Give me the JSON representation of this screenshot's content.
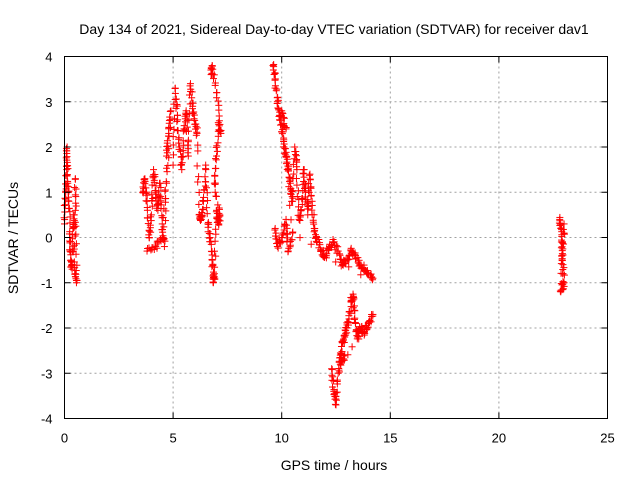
{
  "chart_data": {
    "type": "scatter",
    "title": "Day 134 of 2021, Sidereal Day-to-day VTEC variation (SDTVAR) for receiver dav1",
    "xlabel": "GPS time / hours",
    "ylabel": "SDTVAR / TECUs",
    "xlim": [
      0,
      25
    ],
    "ylim": [
      -4,
      4
    ],
    "xticks": [
      0,
      5,
      10,
      15,
      20,
      25
    ],
    "yticks": [
      -4,
      -3,
      -2,
      -1,
      0,
      1,
      2,
      3,
      4
    ],
    "xtick_labels": [
      "0",
      "5",
      "10",
      "15",
      "20",
      "25"
    ],
    "ytick_labels": [
      "-4",
      "-3",
      "-2",
      "-1",
      "0",
      "1",
      "2",
      "3",
      "4"
    ],
    "grid": true,
    "marker": "+",
    "marker_color": "#ff0000",
    "series": [
      {
        "name": "dav1",
        "segments": [
          [
            [
              0.0,
              0.3
            ],
            [
              0.05,
              1.0
            ],
            [
              0.1,
              1.5
            ],
            [
              0.12,
              2.0
            ],
            [
              0.15,
              1.2
            ],
            [
              0.2,
              0.8
            ],
            [
              0.25,
              0.0
            ],
            [
              0.3,
              -0.5
            ],
            [
              0.35,
              -0.7
            ],
            [
              0.4,
              0.2
            ],
            [
              0.45,
              0.5
            ],
            [
              0.5,
              -0.8
            ],
            [
              0.55,
              -1.0
            ],
            [
              0.5,
              0.6
            ],
            [
              0.5,
              1.3
            ]
          ],
          [
            [
              3.6,
              1.0
            ],
            [
              3.7,
              1.3
            ],
            [
              3.8,
              0.8
            ],
            [
              3.9,
              0.0
            ],
            [
              4.0,
              0.5
            ],
            [
              4.1,
              1.5
            ],
            [
              4.2,
              1.0
            ],
            [
              4.3,
              0.6
            ],
            [
              4.4,
              1.2
            ],
            [
              4.5,
              0.3
            ],
            [
              4.6,
              -0.2
            ],
            [
              4.7,
              1.8
            ],
            [
              4.8,
              2.3
            ],
            [
              4.9,
              2.8
            ],
            [
              4.7,
              1.2
            ],
            [
              4.5,
              0.0
            ],
            [
              4.2,
              -0.2
            ],
            [
              3.8,
              -0.3
            ]
          ],
          [
            [
              5.0,
              1.6
            ],
            [
              5.1,
              3.3
            ],
            [
              5.2,
              2.7
            ],
            [
              5.3,
              2.0
            ],
            [
              5.4,
              1.5
            ],
            [
              5.5,
              2.4
            ],
            [
              5.6,
              2.8
            ],
            [
              5.7,
              1.8
            ],
            [
              5.8,
              3.4
            ],
            [
              5.9,
              2.9
            ],
            [
              6.0,
              2.5
            ],
            [
              6.1,
              2.3
            ],
            [
              6.2,
              0.5
            ],
            [
              6.3,
              0.4
            ],
            [
              6.4,
              0.8
            ],
            [
              6.5,
              1.6
            ],
            [
              6.6,
              0.3
            ],
            [
              6.7,
              0.0
            ],
            [
              6.8,
              -0.5
            ],
            [
              6.85,
              -1.0
            ],
            [
              6.9,
              -0.8
            ],
            [
              7.0,
              0.6
            ],
            [
              7.1,
              0.3
            ],
            [
              7.15,
              0.5
            ],
            [
              6.9,
              1.2
            ],
            [
              7.0,
              1.8
            ],
            [
              7.1,
              2.5
            ],
            [
              7.2,
              2.3
            ],
            [
              7.0,
              3.2
            ],
            [
              6.8,
              3.8
            ],
            [
              6.75,
              3.6
            ]
          ],
          [
            [
              9.6,
              3.8
            ],
            [
              9.7,
              3.5
            ],
            [
              9.8,
              3.0
            ],
            [
              9.9,
              2.7
            ],
            [
              10.0,
              2.5
            ],
            [
              10.1,
              2.0
            ],
            [
              10.2,
              1.8
            ],
            [
              10.3,
              1.5
            ],
            [
              10.4,
              1.2
            ],
            [
              10.5,
              0.8
            ],
            [
              10.6,
              2.0
            ],
            [
              10.7,
              1.5
            ],
            [
              10.8,
              0.4
            ],
            [
              10.9,
              0.6
            ],
            [
              11.0,
              1.5
            ],
            [
              11.1,
              1.0
            ],
            [
              11.2,
              0.5
            ],
            [
              11.3,
              1.4
            ],
            [
              11.4,
              0.8
            ],
            [
              11.5,
              0.2
            ],
            [
              11.6,
              0.0
            ],
            [
              11.8,
              -0.3
            ],
            [
              12.0,
              -0.4
            ],
            [
              12.2,
              -0.2
            ],
            [
              12.4,
              -0.1
            ],
            [
              12.6,
              -0.3
            ],
            [
              12.8,
              -0.6
            ],
            [
              13.0,
              -0.5
            ],
            [
              13.2,
              -0.3
            ],
            [
              13.4,
              -0.4
            ],
            [
              13.6,
              -0.6
            ],
            [
              13.8,
              -0.7
            ],
            [
              14.0,
              -0.8
            ],
            [
              14.2,
              -0.9
            ],
            [
              9.7,
              0.2
            ],
            [
              9.8,
              -0.2
            ],
            [
              10.0,
              0.0
            ],
            [
              10.2,
              0.4
            ],
            [
              10.3,
              -0.3
            ],
            [
              10.5,
              0.1
            ],
            [
              10.0,
              2.8
            ],
            [
              10.2,
              2.4
            ]
          ],
          [
            [
              12.3,
              -2.9
            ],
            [
              12.4,
              -3.4
            ],
            [
              12.5,
              -3.7
            ],
            [
              12.6,
              -3.0
            ],
            [
              12.7,
              -2.6
            ],
            [
              12.8,
              -2.3
            ],
            [
              12.9,
              -2.2
            ],
            [
              13.0,
              -2.0
            ],
            [
              13.1,
              -1.8
            ],
            [
              13.2,
              -1.4
            ],
            [
              13.3,
              -1.3
            ],
            [
              13.4,
              -1.9
            ],
            [
              13.5,
              -2.2
            ],
            [
              13.6,
              -2.0
            ],
            [
              13.8,
              -2.1
            ],
            [
              14.0,
              -1.9
            ],
            [
              14.2,
              -1.7
            ],
            [
              12.7,
              -2.8
            ],
            [
              12.9,
              -2.6
            ]
          ],
          [
            [
              22.8,
              0.4
            ],
            [
              22.85,
              0.2
            ],
            [
              22.9,
              -0.1
            ],
            [
              22.95,
              -0.6
            ],
            [
              23.0,
              -1.0
            ],
            [
              22.85,
              -1.2
            ],
            [
              23.0,
              0.3
            ],
            [
              22.9,
              -0.4
            ]
          ]
        ]
      }
    ]
  }
}
